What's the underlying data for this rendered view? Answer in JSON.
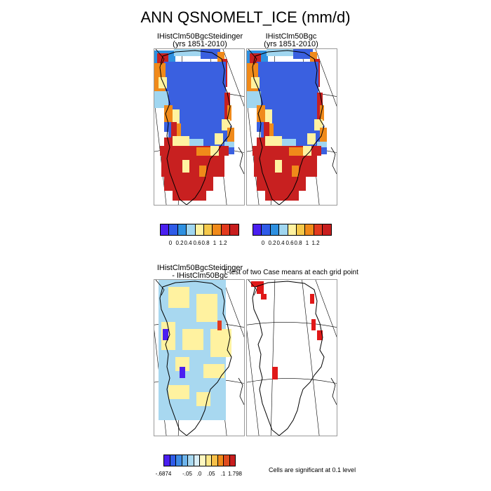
{
  "figure": {
    "title": "ANN QSNOMELT_ICE (mm/d)"
  },
  "panels": {
    "p1": {
      "line1": "IHistClm50BgcSteidinger",
      "line2": "(yrs 1851-2010)"
    },
    "p2": {
      "line1": "IHistClm50Bgc",
      "line2": "(yrs 1851-2010)"
    },
    "p3": {
      "line1": "IHistClm50BgcSteidinger",
      "line2": "- IHistClm50Bgc"
    },
    "p4": {
      "line1": "T-test of two Case means at each grid point"
    }
  },
  "legend_top": {
    "colors": [
      "#4a1ff0",
      "#2f5be8",
      "#2e90e0",
      "#a0d6f0",
      "#fff2a0",
      "#f5c84a",
      "#f08a1a",
      "#e23a1e",
      "#c81e1e"
    ],
    "labels": [
      "0",
      "0.2",
      "0.4",
      "0.6",
      "0.8",
      "1",
      "1.2"
    ]
  },
  "legend_diff": {
    "colors": [
      "#4a1ff0",
      "#2f5be8",
      "#3e8be6",
      "#6db4ec",
      "#a8d8f0",
      "#d8eef8",
      "#fff8c0",
      "#ffe888",
      "#f8c14a",
      "#f08a1a",
      "#e04c1e",
      "#c81e1e"
    ],
    "labels": [
      "-.6874",
      "-.05",
      ".0",
      ".05",
      ".1",
      "1.798"
    ]
  },
  "notes": {
    "significance": "Cells are significant at 0.1 level"
  },
  "map": {
    "colors": {
      "snomelt_high": "#c82020",
      "snomelt_mid_high": "#e23a1e",
      "snomelt_orange": "#f08a1a",
      "snomelt_yellow": "#fff2a0",
      "snomelt_light_blue": "#a0d6f0",
      "snomelt_blue": "#2e90e0",
      "snomelt_low": "#3a60e0",
      "diff_yellow": "#fff2a0",
      "diff_light_blue": "#a8d8f0",
      "diff_low": "#4a1ff0",
      "diff_high": "#e23a1e",
      "significant": "#e01818",
      "coast": "#000000",
      "graticule": "#000000"
    }
  }
}
